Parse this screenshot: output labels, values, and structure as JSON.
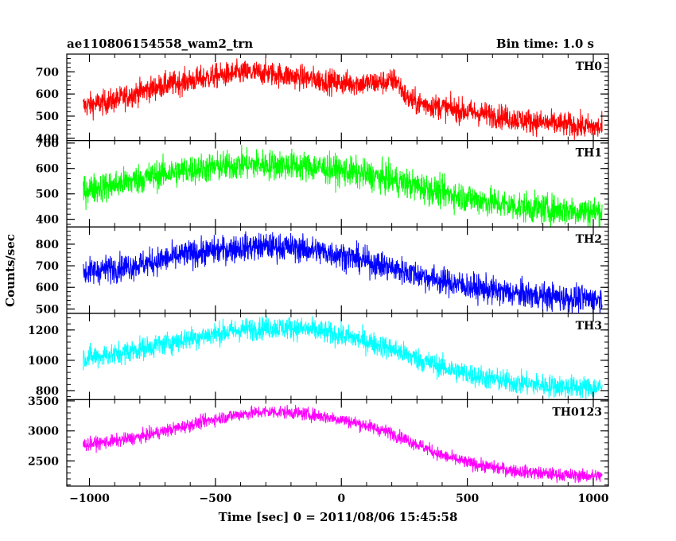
{
  "header": {
    "title": "ae110806154558_wam2_trn",
    "bin_time": "Bin time: 1.0 s"
  },
  "chart_data": {
    "type": "line",
    "title": "ae110806154558_wam2_trn",
    "subtitle": "Bin time: 1.0 s",
    "xlabel": "Time [sec] 0 = 2011/08/06 15:45:58",
    "ylabel": "Counts/sec",
    "xlim": [
      -1090,
      1060
    ],
    "x_ticks": [
      -1000,
      -500,
      0,
      500,
      1000
    ],
    "x_tick_labels": [
      "−1000",
      "−500",
      "0",
      "500",
      "1000"
    ],
    "x_range": [
      -1025,
      1035
    ],
    "grid": false,
    "panels": [
      {
        "name": "TH0",
        "color": "#ff0000",
        "ylim": [
          390,
          780
        ],
        "y_ticks": [
          400,
          500,
          600,
          700
        ],
        "y_tick_labels": [
          "400",
          "500",
          "600",
          "700"
        ],
        "noise": 28,
        "curve": [
          [
            -1025,
            545
          ],
          [
            -900,
            570
          ],
          [
            -800,
            610
          ],
          [
            -700,
            640
          ],
          [
            -600,
            660
          ],
          [
            -500,
            680
          ],
          [
            -400,
            695
          ],
          [
            -300,
            695
          ],
          [
            -200,
            680
          ],
          [
            -100,
            665
          ],
          [
            0,
            650
          ],
          [
            100,
            648
          ],
          [
            190,
            655
          ],
          [
            215,
            665
          ],
          [
            230,
            640
          ],
          [
            260,
            580
          ],
          [
            300,
            560
          ],
          [
            400,
            540
          ],
          [
            500,
            520
          ],
          [
            600,
            505
          ],
          [
            700,
            485
          ],
          [
            800,
            470
          ],
          [
            900,
            460
          ],
          [
            1000,
            450
          ],
          [
            1035,
            445
          ]
        ]
      },
      {
        "name": "TH1",
        "color": "#00ff00",
        "ylim": [
          370,
          710
        ],
        "y_ticks": [
          400,
          500,
          600,
          700
        ],
        "y_tick_labels": [
          "400",
          "500",
          "600",
          "700"
        ],
        "noise": 30,
        "curve": [
          [
            -1025,
            515
          ],
          [
            -900,
            535
          ],
          [
            -800,
            560
          ],
          [
            -700,
            580
          ],
          [
            -600,
            595
          ],
          [
            -500,
            605
          ],
          [
            -400,
            615
          ],
          [
            -300,
            615
          ],
          [
            -200,
            612
          ],
          [
            -100,
            605
          ],
          [
            0,
            590
          ],
          [
            100,
            575
          ],
          [
            200,
            555
          ],
          [
            300,
            530
          ],
          [
            400,
            505
          ],
          [
            500,
            485
          ],
          [
            600,
            465
          ],
          [
            700,
            450
          ],
          [
            800,
            440
          ],
          [
            900,
            435
          ],
          [
            1000,
            430
          ],
          [
            1035,
            430
          ]
        ]
      },
      {
        "name": "TH2",
        "color": "#0000ff",
        "ylim": [
          480,
          880
        ],
        "y_ticks": [
          500,
          600,
          700,
          800
        ],
        "y_tick_labels": [
          "500",
          "600",
          "700",
          "800"
        ],
        "noise": 32,
        "curve": [
          [
            -1025,
            670
          ],
          [
            -900,
            690
          ],
          [
            -800,
            705
          ],
          [
            -700,
            730
          ],
          [
            -600,
            755
          ],
          [
            -500,
            770
          ],
          [
            -400,
            785
          ],
          [
            -300,
            790
          ],
          [
            -200,
            785
          ],
          [
            -100,
            770
          ],
          [
            0,
            750
          ],
          [
            100,
            720
          ],
          [
            200,
            690
          ],
          [
            300,
            660
          ],
          [
            400,
            630
          ],
          [
            500,
            605
          ],
          [
            600,
            585
          ],
          [
            700,
            570
          ],
          [
            800,
            560
          ],
          [
            900,
            550
          ],
          [
            1000,
            545
          ],
          [
            1035,
            545
          ]
        ]
      },
      {
        "name": "TH3",
        "color": "#00ffff",
        "ylim": [
          740,
          1310
        ],
        "y_ticks": [
          800,
          1000,
          1200
        ],
        "y_tick_labels": [
          "800",
          "1000",
          "1200"
        ],
        "noise": 38,
        "curve": [
          [
            -1025,
            1015
          ],
          [
            -900,
            1040
          ],
          [
            -800,
            1075
          ],
          [
            -700,
            1110
          ],
          [
            -600,
            1145
          ],
          [
            -500,
            1175
          ],
          [
            -400,
            1200
          ],
          [
            -300,
            1215
          ],
          [
            -200,
            1215
          ],
          [
            -100,
            1195
          ],
          [
            0,
            1165
          ],
          [
            100,
            1125
          ],
          [
            200,
            1075
          ],
          [
            300,
            1010
          ],
          [
            400,
            955
          ],
          [
            500,
            910
          ],
          [
            600,
            875
          ],
          [
            700,
            850
          ],
          [
            800,
            835
          ],
          [
            900,
            825
          ],
          [
            1000,
            820
          ],
          [
            1035,
            820
          ]
        ]
      },
      {
        "name": "TH0123",
        "color": "#ff00ff",
        "ylim": [
          2080,
          3520
        ],
        "y_ticks": [
          2500,
          3000,
          3500
        ],
        "y_tick_labels": [
          "2500",
          "3000",
          "3500"
        ],
        "noise": 55,
        "curve": [
          [
            -1025,
            2770
          ],
          [
            -900,
            2830
          ],
          [
            -800,
            2900
          ],
          [
            -700,
            3000
          ],
          [
            -600,
            3100
          ],
          [
            -500,
            3200
          ],
          [
            -400,
            3280
          ],
          [
            -300,
            3320
          ],
          [
            -200,
            3310
          ],
          [
            -100,
            3260
          ],
          [
            0,
            3190
          ],
          [
            100,
            3090
          ],
          [
            200,
            2960
          ],
          [
            300,
            2780
          ],
          [
            400,
            2590
          ],
          [
            500,
            2470
          ],
          [
            600,
            2390
          ],
          [
            700,
            2330
          ],
          [
            800,
            2290
          ],
          [
            900,
            2260
          ],
          [
            1000,
            2250
          ],
          [
            1035,
            2250
          ]
        ]
      }
    ]
  }
}
